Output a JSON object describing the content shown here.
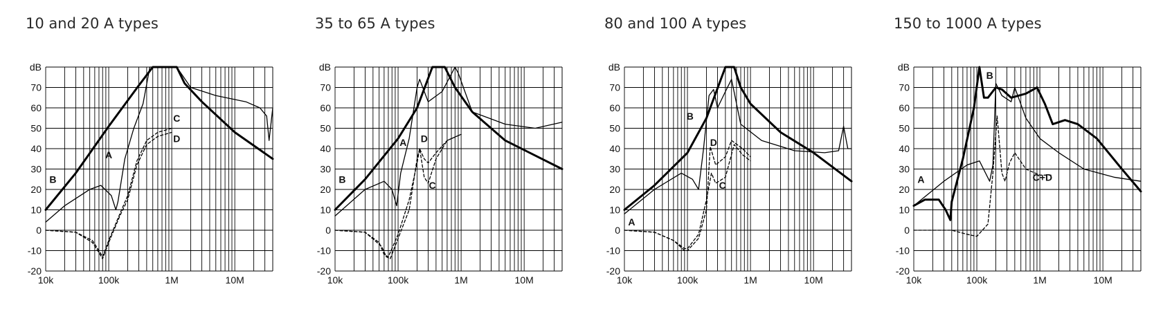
{
  "chart_data": [
    {
      "type": "line",
      "title": "10 and 20 A types",
      "ylabel": "dB",
      "xscale": "log",
      "xlim": [
        10000,
        40000000
      ],
      "ylim": [
        -20,
        80
      ],
      "grid": true,
      "y_ticks": [
        "-20",
        "-10",
        "0",
        "10",
        "20",
        "30",
        "40",
        "50",
        "60",
        "70"
      ],
      "x_ticks": [
        {
          "value": 10000,
          "label": "10k"
        },
        {
          "value": 100000,
          "label": "100k"
        },
        {
          "value": 1000000,
          "label": "1M"
        },
        {
          "value": 10000000,
          "label": "10M"
        }
      ],
      "series": [
        {
          "name": "B",
          "style": "thick",
          "x": [
            10000,
            30000,
            100000,
            300000,
            500000,
            1200000,
            1600000,
            3000000,
            10000000,
            40000000
          ],
          "y": [
            10,
            28,
            51,
            71,
            80,
            80,
            72,
            63,
            48,
            35
          ]
        },
        {
          "name": "A",
          "style": "thin",
          "x": [
            10000,
            20000,
            50000,
            75000,
            110000,
            130000,
            140000,
            180000,
            250000,
            350000,
            450000,
            1200000,
            2000000,
            5000000,
            15000000,
            25000000,
            32000000,
            35000000,
            40000000
          ],
          "y": [
            4,
            12,
            20,
            22,
            17,
            10,
            14,
            35,
            50,
            62,
            80,
            80,
            70,
            66,
            63,
            60,
            56,
            44,
            60
          ]
        },
        {
          "name": "C",
          "style": "dashed",
          "x": [
            10000,
            30000,
            55000,
            70000,
            80000,
            100000,
            150000,
            200000,
            280000,
            400000,
            600000,
            1000000
          ],
          "y": [
            0,
            -1,
            -5,
            -10,
            -13,
            -5,
            8,
            17,
            34,
            44,
            48,
            50
          ]
        },
        {
          "name": "D",
          "style": "dashed",
          "x": [
            10000,
            30000,
            55000,
            70000,
            80000,
            100000,
            150000,
            200000,
            280000,
            400000,
            600000,
            1000000
          ],
          "y": [
            0,
            -1,
            -6,
            -11,
            -14,
            -6,
            7,
            15,
            32,
            42,
            46,
            48
          ]
        }
      ],
      "annotations": [
        {
          "text": "B",
          "x": 13000,
          "y": 25
        },
        {
          "text": "A",
          "x": 100000,
          "y": 37
        },
        {
          "text": "C",
          "x": 1200000,
          "y": 55
        },
        {
          "text": "D",
          "x": 1200000,
          "y": 45
        }
      ]
    },
    {
      "type": "line",
      "title": "35 to 65 A types",
      "ylabel": "dB",
      "xscale": "log",
      "xlim": [
        10000,
        40000000
      ],
      "ylim": [
        -20,
        80
      ],
      "grid": true,
      "y_ticks": [
        "-20",
        "-10",
        "0",
        "10",
        "20",
        "30",
        "40",
        "50",
        "60",
        "70"
      ],
      "x_ticks": [
        {
          "value": 10000,
          "label": "10k"
        },
        {
          "value": 100000,
          "label": "100k"
        },
        {
          "value": 1000000,
          "label": "1M"
        },
        {
          "value": 10000000,
          "label": "10M"
        }
      ],
      "series": [
        {
          "name": "B",
          "style": "thick",
          "x": [
            10000,
            30000,
            100000,
            200000,
            350000,
            550000,
            800000,
            1500000,
            5000000,
            40000000
          ],
          "y": [
            10,
            25,
            45,
            60,
            80,
            80,
            70,
            58,
            44,
            30
          ]
        },
        {
          "name": "A",
          "style": "thin",
          "x": [
            10000,
            30000,
            60000,
            80000,
            95000,
            110000,
            150000,
            200000,
            220000,
            300000,
            500000,
            800000,
            900000,
            1500000,
            5000000,
            15000000,
            40000000
          ],
          "y": [
            7,
            20,
            24,
            20,
            12,
            28,
            45,
            70,
            74,
            63,
            68,
            80,
            77,
            58,
            52,
            50,
            53
          ]
        },
        {
          "name": "C",
          "style": "dashed",
          "x": [
            10000,
            30000,
            55000,
            65000,
            75000,
            100000,
            150000,
            200000,
            220000,
            260000,
            300000,
            400000,
            600000,
            1000000
          ],
          "y": [
            0,
            -1,
            -8,
            -13,
            -14,
            -4,
            10,
            35,
            40,
            26,
            23,
            35,
            44,
            47
          ]
        },
        {
          "name": "D",
          "style": "dashed",
          "x": [
            10000,
            30000,
            50000,
            60000,
            70000,
            100000,
            150000,
            200000,
            220000,
            260000,
            300000,
            400000,
            600000,
            1000000
          ],
          "y": [
            0,
            -1,
            -6,
            -12,
            -13,
            -2,
            15,
            33,
            40,
            35,
            33,
            38,
            44,
            47
          ]
        }
      ],
      "annotations": [
        {
          "text": "B",
          "x": 13000,
          "y": 25
        },
        {
          "text": "A",
          "x": 120000,
          "y": 43
        },
        {
          "text": "D",
          "x": 260000,
          "y": 45
        },
        {
          "text": "C",
          "x": 350000,
          "y": 22
        }
      ]
    },
    {
      "type": "line",
      "title": "80 and 100 A types",
      "ylabel": "dB",
      "xscale": "log",
      "xlim": [
        10000,
        40000000
      ],
      "ylim": [
        -20,
        80
      ],
      "grid": true,
      "y_ticks": [
        "-20",
        "-10",
        "0",
        "10",
        "20",
        "30",
        "40",
        "50",
        "60",
        "70"
      ],
      "x_ticks": [
        {
          "value": 10000,
          "label": "10k"
        },
        {
          "value": 100000,
          "label": "100k"
        },
        {
          "value": 1000000,
          "label": "1M"
        },
        {
          "value": 10000000,
          "label": "10M"
        }
      ],
      "series": [
        {
          "name": "B",
          "style": "thick",
          "x": [
            10000,
            30000,
            100000,
            200000,
            400000,
            550000,
            700000,
            1000000,
            3000000,
            10000000,
            40000000
          ],
          "y": [
            10,
            22,
            38,
            55,
            80,
            80,
            70,
            62,
            48,
            38,
            24
          ]
        },
        {
          "name": "A",
          "style": "thin",
          "x": [
            10000,
            30000,
            80000,
            120000,
            150000,
            180000,
            220000,
            260000,
            300000,
            400000,
            500000,
            700000,
            1500000,
            5000000,
            15000000,
            25000000,
            30000000,
            35000000,
            40000000
          ],
          "y": [
            8,
            20,
            28,
            25,
            20,
            40,
            66,
            69,
            60,
            68,
            74,
            52,
            44,
            39,
            38,
            39,
            51,
            40,
            40
          ]
        },
        {
          "name": "C",
          "style": "dashed",
          "x": [
            10000,
            30000,
            60000,
            90000,
            100000,
            150000,
            200000,
            240000,
            280000,
            400000,
            550000,
            750000,
            1000000
          ],
          "y": [
            0,
            -1,
            -5,
            -9,
            -9,
            -2,
            15,
            28,
            23,
            26,
            42,
            37,
            34
          ]
        },
        {
          "name": "D",
          "style": "dashed",
          "x": [
            10000,
            30000,
            60000,
            90000,
            100000,
            150000,
            200000,
            230000,
            280000,
            400000,
            500000,
            750000,
            1000000
          ],
          "y": [
            0,
            -1,
            -5,
            -10,
            -10,
            -4,
            10,
            41,
            32,
            36,
            44,
            40,
            36
          ]
        }
      ],
      "annotations": [
        {
          "text": "A",
          "x": 13000,
          "y": 4
        },
        {
          "text": "B",
          "x": 110000,
          "y": 56
        },
        {
          "text": "D",
          "x": 260000,
          "y": 43
        },
        {
          "text": "C",
          "x": 360000,
          "y": 22
        }
      ]
    },
    {
      "type": "line",
      "title": "150 to 1000 A types",
      "ylabel": "dB",
      "xscale": "log",
      "xlim": [
        10000,
        40000000
      ],
      "ylim": [
        -20,
        80
      ],
      "grid": true,
      "y_ticks": [
        "-20",
        "-10",
        "0",
        "10",
        "20",
        "30",
        "40",
        "50",
        "60",
        "70"
      ],
      "x_ticks": [
        {
          "value": 10000,
          "label": "10k"
        },
        {
          "value": 100000,
          "label": "100k"
        },
        {
          "value": 1000000,
          "label": "1M"
        },
        {
          "value": 10000000,
          "label": "10M"
        }
      ],
      "series": [
        {
          "name": "B",
          "style": "thick",
          "x": [
            10000,
            15000,
            25000,
            32000,
            38000,
            40000,
            60000,
            90000,
            110000,
            130000,
            150000,
            200000,
            250000,
            350000,
            600000,
            900000,
            1200000,
            1600000,
            2500000,
            4000000,
            8000000,
            20000000,
            40000000
          ],
          "y": [
            12,
            15,
            15,
            10,
            5,
            14,
            35,
            60,
            80,
            65,
            65,
            70,
            69,
            65,
            67,
            70,
            62,
            52,
            54,
            52,
            45,
            30,
            19
          ]
        },
        {
          "name": "A",
          "style": "thin",
          "x": [
            10000,
            30000,
            70000,
            110000,
            160000,
            180000,
            200000,
            250000,
            350000,
            400000,
            600000,
            1000000,
            2000000,
            5000000,
            15000000,
            40000000
          ],
          "y": [
            12,
            24,
            32,
            34,
            24,
            32,
            72,
            66,
            63,
            70,
            55,
            45,
            38,
            30,
            26,
            24
          ]
        },
        {
          "name": "C+D",
          "style": "dashed",
          "x": [
            10000,
            40000,
            70000,
            100000,
            150000,
            180000,
            210000,
            250000,
            280000,
            330000,
            400000,
            600000,
            1000000,
            1500000
          ],
          "y": [
            0,
            0,
            -2,
            -3,
            3,
            28,
            56,
            28,
            24,
            33,
            38,
            30,
            27,
            27
          ]
        }
      ],
      "annotations": [
        {
          "text": "A",
          "x": 13000,
          "y": 25
        },
        {
          "text": "B",
          "x": 160000,
          "y": 76
        },
        {
          "text": "C+D",
          "x": 1100000,
          "y": 26
        }
      ]
    }
  ]
}
